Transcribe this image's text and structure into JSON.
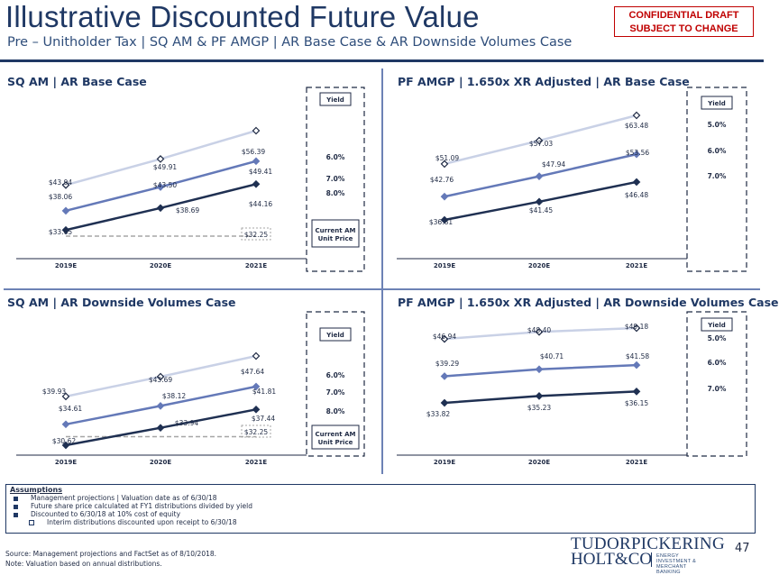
{
  "header": {
    "title": "Illustrative Discounted Future Value",
    "subtitle": "Pre – Unitholder Tax | SQ AM & PF AMGP | AR Base Case & AR Downside Volumes Case",
    "confidential_line1": "CONFIDENTIAL DRAFT",
    "confidential_line2": "SUBJECT TO CHANGE"
  },
  "panels": {
    "p1": {
      "title": "SQ AM | AR Base Case"
    },
    "p2": {
      "title": "PF AMGP | 1.650x XR Adjusted | AR Base Case"
    },
    "p3": {
      "title": "SQ AM | AR Downside Volumes Case"
    },
    "p4": {
      "title": "PF AMGP | 1.650x XR Adjusted | AR Downside Volumes Case"
    }
  },
  "colors": {
    "light": "#c9d1e6",
    "mid": "#6479b8",
    "dark": "#1f3052",
    "ref": "#a6a6a6",
    "frame": "#1f3864"
  },
  "chart_data": [
    {
      "type": "line",
      "title": "SQ AM | AR Base Case",
      "categories": [
        "2019E",
        "2020E",
        "2021E"
      ],
      "series": [
        {
          "yield": "6.0%",
          "values": [
            43.94,
            49.91,
            56.39
          ],
          "labels": [
            "$43.94",
            "$49.91",
            "$56.39"
          ]
        },
        {
          "yield": "7.0%",
          "values": [
            38.06,
            43.5,
            49.41
          ],
          "labels": [
            "$38.06",
            "$43.50",
            "$49.41"
          ]
        },
        {
          "yield": "8.0%",
          "values": [
            33.65,
            38.69,
            44.16
          ],
          "labels": [
            "$33.65",
            "$38.69",
            "$44.16"
          ]
        }
      ],
      "reference": {
        "name": "Current AM Unit Price",
        "value": 32.25,
        "label": "$32.25"
      },
      "legend_title": "Yield",
      "reference_title": "Current AM Unit Price"
    },
    {
      "type": "line",
      "title": "PF AMGP | 1.650x XR Adjusted | AR Base Case",
      "categories": [
        "2019E",
        "2020E",
        "2021E"
      ],
      "series": [
        {
          "yield": "5.0%",
          "values": [
            51.09,
            57.03,
            63.48
          ],
          "labels": [
            "$51.09",
            "$57.03",
            "$63.48"
          ]
        },
        {
          "yield": "6.0%",
          "values": [
            42.76,
            47.94,
            53.56
          ],
          "labels": [
            "$42.76",
            "$47.94",
            "$53.56"
          ]
        },
        {
          "yield": "7.0%",
          "values": [
            36.81,
            41.45,
            46.48
          ],
          "labels": [
            "$36.81",
            "$41.45",
            "$46.48"
          ]
        }
      ],
      "legend_title": "Yield"
    },
    {
      "type": "line",
      "title": "SQ AM | AR Downside Volumes Case",
      "categories": [
        "2019E",
        "2020E",
        "2021E"
      ],
      "series": [
        {
          "yield": "6.0%",
          "values": [
            39.93,
            43.69,
            47.64
          ],
          "labels": [
            "$39.93",
            "$43.69",
            "$47.64"
          ]
        },
        {
          "yield": "7.0%",
          "values": [
            34.61,
            38.12,
            41.81
          ],
          "labels": [
            "$34.61",
            "$38.12",
            "$41.81"
          ]
        },
        {
          "yield": "8.0%",
          "values": [
            30.62,
            33.94,
            37.44
          ],
          "labels": [
            "$30.62",
            "$33.94",
            "$37.44"
          ]
        }
      ],
      "reference": {
        "name": "Current AM Unit Price",
        "value": 32.25,
        "label": "$32.25"
      },
      "legend_title": "Yield",
      "reference_title": "Current AM Unit Price"
    },
    {
      "type": "line",
      "title": "PF AMGP | 1.650x XR Adjusted | AR Downside Volumes Case",
      "categories": [
        "2019E",
        "2020E",
        "2021E"
      ],
      "series": [
        {
          "yield": "5.0%",
          "values": [
            46.94,
            48.4,
            49.18
          ],
          "labels": [
            "$46.94",
            "$48.40",
            "$49.18"
          ]
        },
        {
          "yield": "6.0%",
          "values": [
            39.29,
            40.71,
            41.58
          ],
          "labels": [
            "$39.29",
            "$40.71",
            "$41.58"
          ]
        },
        {
          "yield": "7.0%",
          "values": [
            33.82,
            35.23,
            36.15
          ],
          "labels": [
            "$33.82",
            "$35.23",
            "$36.15"
          ]
        }
      ],
      "legend_title": "Yield"
    }
  ],
  "assumptions": {
    "title": "Assumptions",
    "items": [
      "Management projections | Valuation date as of 6/30/18",
      "Future share price calculated at FY1 distributions divided by yield",
      "Discounted to 6/30/18 at 10% cost of equity"
    ],
    "subitem": "Interim distributions discounted upon receipt to 6/30/18"
  },
  "footer": {
    "source": "Source: Management projections and FactSet as of 8/10/2018.",
    "note": "Note: Valuation based on annual distributions.",
    "logo_top": "TUDORPICKERING",
    "logo_bottom": "HOLT&CO",
    "logo_tag": "ENERGY INVESTMENT & MERCHANT BANKING",
    "page_number": "47"
  }
}
